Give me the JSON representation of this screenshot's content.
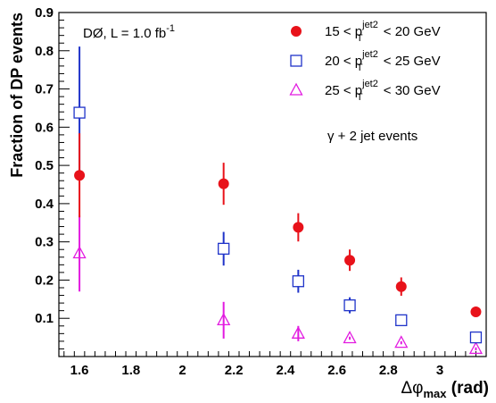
{
  "chart_data": {
    "type": "scatter",
    "title": "",
    "xlabel": {
      "main": "Δφ",
      "sub": "max",
      "unit": " (rad)"
    },
    "ylabel": "Fraction of DP events",
    "xlim": [
      1.52,
      3.18
    ],
    "ylim": [
      0.0,
      0.9
    ],
    "x_ticks": [
      1.6,
      1.8,
      2,
      2.2,
      2.4,
      2.6,
      2.8,
      3
    ],
    "x_tick_labels": [
      "1.6",
      "1.8",
      "2",
      "2.2",
      "2.4",
      "2.6",
      "2.8",
      "3"
    ],
    "y_ticks": [
      0.1,
      0.2,
      0.3,
      0.4,
      0.5,
      0.6,
      0.7,
      0.8,
      0.9
    ],
    "y_tick_labels": [
      "0.1",
      "0.2",
      "0.3",
      "0.4",
      "0.5",
      "0.6",
      "0.7",
      "0.8",
      "0.9"
    ],
    "grid": false,
    "legend_position": "top-right",
    "annotations": {
      "experiment": {
        "text": "DØ, L = 1.0 fb",
        "sup": "-1"
      },
      "event_type": "γ + 2 jet events"
    },
    "series": [
      {
        "label": {
          "pre": "15 < p",
          "sup": "jet2",
          "sub": "T",
          "post": " < 20 GeV"
        },
        "marker": "filled-circle",
        "color": "#e8121a",
        "points": [
          {
            "x": 1.6,
            "y": 0.474,
            "err": 0.11
          },
          {
            "x": 2.16,
            "y": 0.452,
            "err": 0.055
          },
          {
            "x": 2.45,
            "y": 0.338,
            "err": 0.037
          },
          {
            "x": 2.65,
            "y": 0.252,
            "err": 0.028
          },
          {
            "x": 2.85,
            "y": 0.183,
            "err": 0.024
          },
          {
            "x": 3.14,
            "y": 0.117,
            "err": 0.004
          }
        ]
      },
      {
        "label": {
          "pre": "20 < p",
          "sup": "jet2",
          "sub": "T",
          "post": " < 25 GeV"
        },
        "marker": "open-square",
        "color": "#1f33c9",
        "points": [
          {
            "x": 1.6,
            "y": 0.638,
            "err": 0.173
          },
          {
            "x": 2.16,
            "y": 0.282,
            "err": 0.044
          },
          {
            "x": 2.45,
            "y": 0.197,
            "err": 0.03
          },
          {
            "x": 2.65,
            "y": 0.134,
            "err": 0.021
          },
          {
            "x": 2.85,
            "y": 0.095,
            "err": 0.006
          },
          {
            "x": 3.14,
            "y": 0.05,
            "err": 0.004
          }
        ]
      },
      {
        "label": {
          "pre": "25 < p",
          "sup": "jet2",
          "sub": "T",
          "post": " < 30 GeV"
        },
        "marker": "open-triangle",
        "color": "#e21ae0",
        "points": [
          {
            "x": 1.6,
            "y": 0.27,
            "err": 0.1
          },
          {
            "x": 2.16,
            "y": 0.095,
            "err": 0.048
          },
          {
            "x": 2.45,
            "y": 0.06,
            "err": 0.02
          },
          {
            "x": 2.65,
            "y": 0.048,
            "err": 0.004
          },
          {
            "x": 2.85,
            "y": 0.036,
            "err": 0.004
          },
          {
            "x": 3.14,
            "y": 0.02,
            "err": 0.004
          }
        ]
      }
    ]
  }
}
